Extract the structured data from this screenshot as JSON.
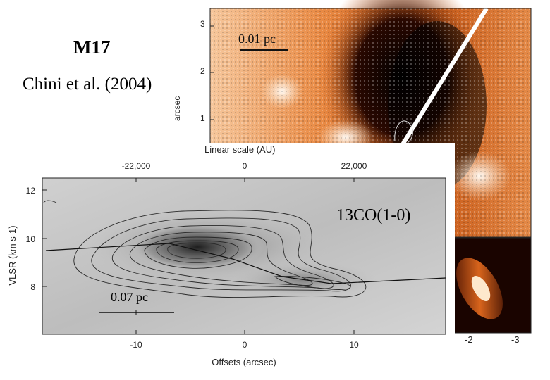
{
  "slide": {
    "title": "M17",
    "citation": "Chini et al. (2004)"
  },
  "top_panel": {
    "scale_bar_label": "0.01 pc",
    "y_ticks": [
      "3",
      "2",
      "1"
    ],
    "y_axis_label": "arcsec",
    "colormap": "orange-black heat"
  },
  "inset_panel": {
    "x_ticks": [
      "-2",
      "-3"
    ]
  },
  "pv_diagram": {
    "top_axis_label": "Linear scale (AU)",
    "top_ticks": [
      "-22,000",
      "0",
      "22,000"
    ],
    "bottom_ticks": [
      "-10",
      "0",
      "10"
    ],
    "x_axis_label": "Offsets (arcsec)",
    "y_ticks": [
      "12",
      "10",
      "8"
    ],
    "y_axis_label": "VLSR (km s-1)",
    "line_label": "13CO(1-0)",
    "scale_bar_label": "0.07 pc"
  },
  "colors": {
    "heat_dark": "#1a0500",
    "heat_orange": "#e8742a",
    "heat_light": "#fbe3c8",
    "pv_background": "#c8c8c8"
  }
}
